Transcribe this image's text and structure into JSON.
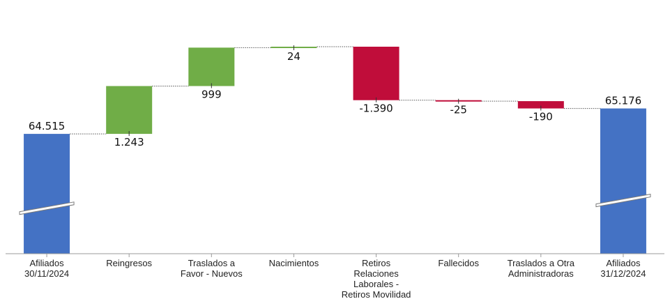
{
  "chart_data": {
    "type": "waterfall",
    "title": "",
    "xlabel": "",
    "ylabel": "",
    "axis_break": true,
    "categories": [
      "Afiliados 30/11/2024",
      "Reingresos",
      "Traslados a Favor - Nuevos",
      "Nacimientos",
      "Retiros Relaciones Laborales - Retiros Movilidad",
      "Fallecidos",
      "Traslados a Otra Administradoras",
      "Afiliados 31/12/2024"
    ],
    "category_lines": [
      [
        "Afiliados",
        "30/11/2024"
      ],
      [
        "Reingresos"
      ],
      [
        "Traslados a",
        "Favor - Nuevos"
      ],
      [
        "Nacimientos"
      ],
      [
        "Retiros",
        "Relaciones",
        "Laborales -",
        "Retiros Movilidad"
      ],
      [
        "Fallecidos"
      ],
      [
        "Traslados a Otra",
        "Administradoras"
      ],
      [
        "Afiliados",
        "31/12/2024"
      ]
    ],
    "values": [
      64515,
      1243,
      999,
      24,
      -1390,
      -25,
      -190,
      65176
    ],
    "kinds": [
      "total",
      "delta",
      "delta",
      "delta",
      "delta",
      "delta",
      "delta",
      "total"
    ],
    "labels": [
      "64.515",
      "1.243",
      "999",
      "24",
      "-1.390",
      "-25",
      "-190",
      "65.176"
    ],
    "colors": {
      "total": "#4472C4",
      "increase": "#70AD47",
      "decrease": "#C00D3A"
    }
  }
}
